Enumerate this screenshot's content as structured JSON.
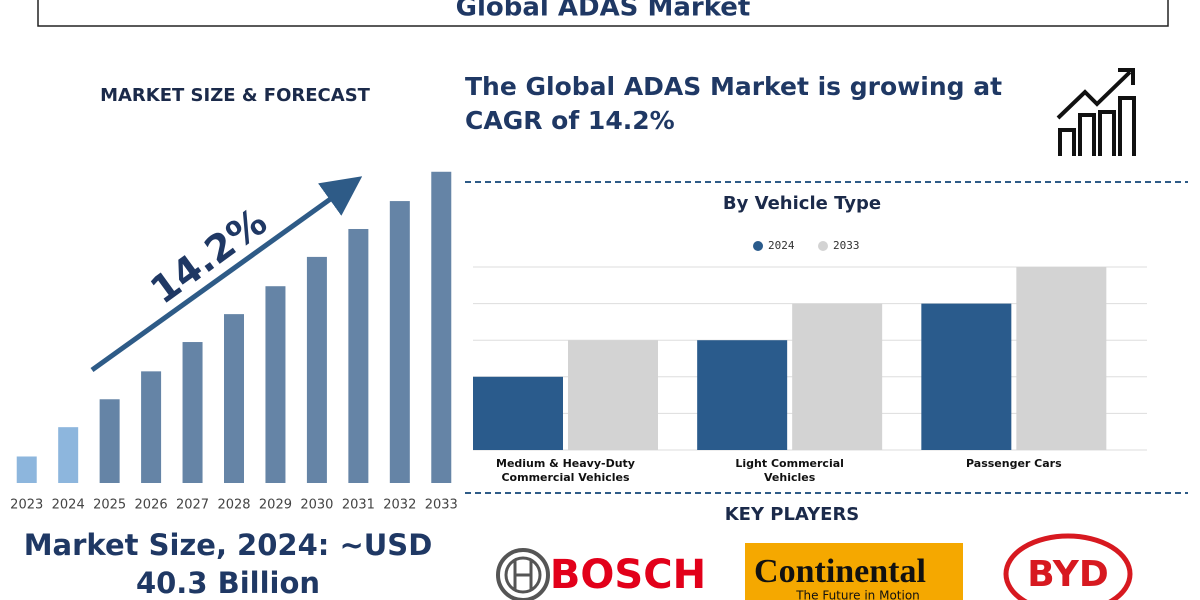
{
  "header": {
    "title": "Global ADAS Market"
  },
  "cagr_text": "The Global ADAS Market is growing at CAGR of 14.2%",
  "market_size": "Market Size, 2024: ~USD 40.3 Billion",
  "key_players": {
    "title": "KEY PLAYERS",
    "logos": [
      {
        "name": "BOSCH"
      },
      {
        "name": "Continental",
        "tagline": "The Future in Motion"
      },
      {
        "name": "BYD"
      }
    ]
  },
  "chart_data": [
    {
      "type": "bar",
      "title": "MARKET SIZE & FORECAST",
      "annotation": "14.2%",
      "categories": [
        "2023",
        "2024",
        "2025",
        "2026",
        "2027",
        "2028",
        "2029",
        "2030",
        "2031",
        "2032",
        "2033"
      ],
      "values": [
        19,
        40,
        60,
        80,
        101,
        121,
        141,
        162,
        182,
        202,
        223
      ],
      "colors": [
        "#8db6dd",
        "#8db6dd",
        "#6584a6",
        "#6584a6",
        "#6584a6",
        "#6584a6",
        "#6584a6",
        "#6584a6",
        "#6584a6",
        "#6584a6",
        "#6584a6"
      ],
      "ylim": [
        0,
        230
      ]
    },
    {
      "type": "grouped_bar",
      "title": "By Vehicle Type",
      "categories": [
        "Medium & Heavy-Duty Commercial Vehicles",
        "Light Commercial Vehicles",
        "Passenger Cars"
      ],
      "series": [
        {
          "name": "2024",
          "color": "#2a5b8c",
          "values": [
            2,
            3,
            4
          ]
        },
        {
          "name": "2033",
          "color": "#d3d3d3",
          "values": [
            3,
            4,
            5
          ]
        }
      ],
      "ylim": [
        0,
        5
      ],
      "yticks": [
        0,
        1,
        2,
        3,
        4,
        5
      ],
      "grid": true
    }
  ]
}
